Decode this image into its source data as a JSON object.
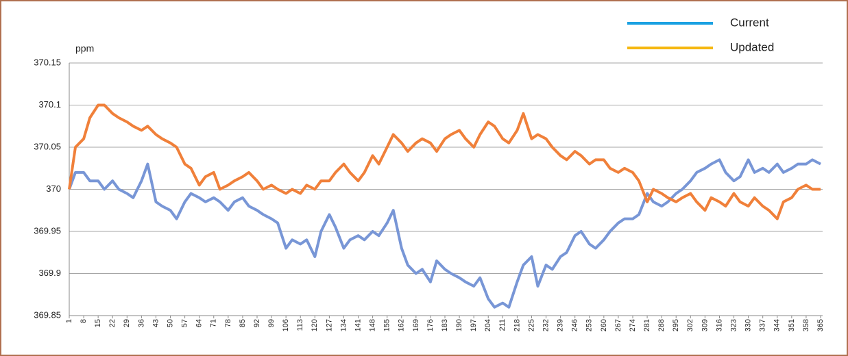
{
  "chart_data": {
    "type": "line",
    "y_label": "ppm",
    "x": [
      1,
      4,
      8,
      11,
      15,
      18,
      22,
      25,
      29,
      32,
      36,
      39,
      43,
      46,
      50,
      53,
      57,
      60,
      64,
      67,
      71,
      74,
      78,
      81,
      85,
      88,
      92,
      95,
      99,
      102,
      106,
      109,
      113,
      116,
      120,
      123,
      127,
      130,
      134,
      137,
      141,
      144,
      148,
      151,
      155,
      158,
      162,
      165,
      169,
      172,
      176,
      179,
      183,
      186,
      190,
      193,
      197,
      200,
      204,
      207,
      211,
      214,
      218,
      221,
      225,
      228,
      232,
      235,
      239,
      242,
      246,
      249,
      253,
      256,
      260,
      263,
      267,
      270,
      274,
      277,
      281,
      284,
      288,
      291,
      295,
      298,
      302,
      305,
      309,
      312,
      316,
      319,
      323,
      326,
      330,
      333,
      337,
      340,
      344,
      347,
      351,
      354,
      358,
      361,
      365
    ],
    "xlim": [
      1,
      365
    ],
    "xticks": [
      1,
      8,
      15,
      22,
      29,
      36,
      43,
      50,
      57,
      64,
      71,
      78,
      85,
      92,
      99,
      106,
      113,
      120,
      127,
      134,
      141,
      148,
      155,
      162,
      169,
      176,
      183,
      190,
      197,
      204,
      211,
      218,
      225,
      232,
      239,
      246,
      253,
      260,
      267,
      274,
      281,
      288,
      295,
      302,
      309,
      316,
      323,
      330,
      337,
      344,
      351,
      358,
      365
    ],
    "ylim": [
      369.85,
      370.15
    ],
    "yticks": [
      369.85,
      369.9,
      369.95,
      370,
      370.05,
      370.1,
      370.15
    ],
    "grid": true,
    "legend": "top-right",
    "series": [
      {
        "name": "Current",
        "color": "#7896d6",
        "legend_color": "#1ba1e2",
        "values": [
          370.0,
          370.02,
          370.02,
          370.01,
          370.01,
          370.0,
          370.01,
          370.0,
          369.995,
          369.99,
          370.01,
          370.03,
          369.985,
          369.98,
          369.975,
          369.965,
          369.985,
          369.995,
          369.99,
          369.985,
          369.99,
          369.985,
          369.975,
          369.985,
          369.99,
          369.98,
          369.975,
          369.97,
          369.965,
          369.96,
          369.93,
          369.94,
          369.935,
          369.94,
          369.92,
          369.95,
          369.97,
          369.955,
          369.93,
          369.94,
          369.945,
          369.94,
          369.95,
          369.945,
          369.96,
          369.975,
          369.93,
          369.91,
          369.9,
          369.905,
          369.89,
          369.915,
          369.905,
          369.9,
          369.895,
          369.89,
          369.885,
          369.895,
          369.87,
          369.86,
          369.865,
          369.86,
          369.89,
          369.91,
          369.92,
          369.885,
          369.91,
          369.905,
          369.92,
          369.925,
          369.945,
          369.95,
          369.935,
          369.93,
          369.94,
          369.95,
          369.96,
          369.965,
          369.965,
          369.97,
          369.995,
          369.985,
          369.98,
          369.985,
          369.995,
          370.0,
          370.01,
          370.02,
          370.025,
          370.03,
          370.035,
          370.02,
          370.01,
          370.015,
          370.035,
          370.02,
          370.025,
          370.02,
          370.03,
          370.02,
          370.025,
          370.03,
          370.03,
          370.035,
          370.03
        ]
      },
      {
        "name": "Updated",
        "color": "#f0803a",
        "legend_color": "#f5b70f",
        "values": [
          370.0,
          370.05,
          370.06,
          370.085,
          370.1,
          370.1,
          370.09,
          370.085,
          370.08,
          370.075,
          370.07,
          370.075,
          370.065,
          370.06,
          370.055,
          370.05,
          370.03,
          370.025,
          370.005,
          370.015,
          370.02,
          370.0,
          370.005,
          370.01,
          370.015,
          370.02,
          370.01,
          370.0,
          370.005,
          370.0,
          369.995,
          370.0,
          369.995,
          370.005,
          370.0,
          370.01,
          370.01,
          370.02,
          370.03,
          370.02,
          370.01,
          370.02,
          370.04,
          370.03,
          370.05,
          370.065,
          370.055,
          370.045,
          370.055,
          370.06,
          370.055,
          370.045,
          370.06,
          370.065,
          370.07,
          370.06,
          370.05,
          370.065,
          370.08,
          370.075,
          370.06,
          370.055,
          370.07,
          370.09,
          370.06,
          370.065,
          370.06,
          370.05,
          370.04,
          370.035,
          370.045,
          370.04,
          370.03,
          370.035,
          370.035,
          370.025,
          370.02,
          370.025,
          370.02,
          370.01,
          369.985,
          370.0,
          369.995,
          369.99,
          369.985,
          369.99,
          369.995,
          369.985,
          369.975,
          369.99,
          369.985,
          369.98,
          369.995,
          369.985,
          369.98,
          369.99,
          369.98,
          369.975,
          369.965,
          369.985,
          369.99,
          370.0,
          370.005,
          370.0,
          370.0
        ]
      }
    ]
  }
}
